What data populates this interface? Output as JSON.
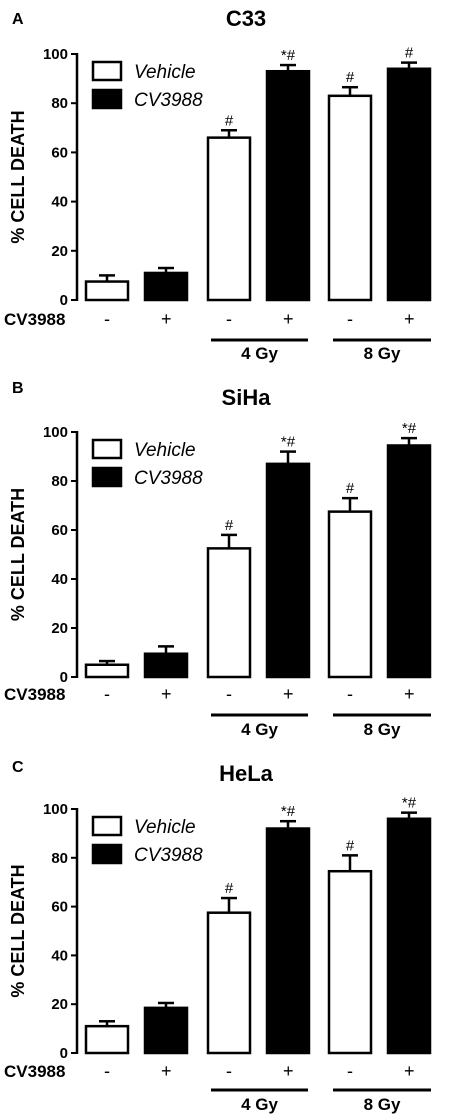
{
  "colors": {
    "vehicle": "#ffffff",
    "cv3988": "#000000",
    "stroke": "#000000"
  },
  "legend": {
    "vehicle": "Vehicle",
    "cv3988": "CV3988"
  },
  "treatment": {
    "label": "CV3988",
    "signs": [
      "-",
      "+",
      "-",
      "+",
      "-",
      "+"
    ]
  },
  "groups": [
    "4 Gy",
    "8 Gy"
  ],
  "chart_data": [
    {
      "type": "bar",
      "panel": "A",
      "title": "C33",
      "ylabel": "% CELL DEATH",
      "ylim": [
        0,
        100
      ],
      "yticks": [
        0,
        20,
        40,
        60,
        80,
        100
      ],
      "categories": [
        "-",
        "+",
        "-",
        "+",
        "-",
        "+"
      ],
      "series_of_bar": [
        "Vehicle",
        "CV3988",
        "Vehicle",
        "CV3988",
        "Vehicle",
        "CV3988"
      ],
      "values": [
        7.5,
        11,
        66,
        93,
        83,
        94
      ],
      "errors": [
        2.5,
        2,
        3,
        2.5,
        3.5,
        2.5
      ],
      "annotations": [
        "",
        "",
        "#",
        "*#",
        "#",
        "#"
      ],
      "group_labels": [
        "4 Gy",
        "8 Gy"
      ]
    },
    {
      "type": "bar",
      "panel": "B",
      "title": "SiHa",
      "ylabel": "% CELL DEATH",
      "ylim": [
        0,
        100
      ],
      "yticks": [
        0,
        20,
        40,
        60,
        80,
        100
      ],
      "categories": [
        "-",
        "+",
        "-",
        "+",
        "-",
        "+"
      ],
      "series_of_bar": [
        "Vehicle",
        "CV3988",
        "Vehicle",
        "CV3988",
        "Vehicle",
        "CV3988"
      ],
      "values": [
        5,
        9.5,
        52.5,
        87,
        67.5,
        94.5
      ],
      "errors": [
        1.5,
        3,
        5.5,
        5,
        5.5,
        3
      ],
      "annotations": [
        "",
        "",
        "#",
        "*#",
        "#",
        "*#"
      ],
      "group_labels": [
        "4 Gy",
        "8 Gy"
      ]
    },
    {
      "type": "bar",
      "panel": "C",
      "title": "HeLa",
      "ylabel": "% CELL DEATH",
      "ylim": [
        0,
        100
      ],
      "yticks": [
        0,
        20,
        40,
        60,
        80,
        100
      ],
      "categories": [
        "-",
        "+",
        "-",
        "+",
        "-",
        "+"
      ],
      "series_of_bar": [
        "Vehicle",
        "CV3988",
        "Vehicle",
        "CV3988",
        "Vehicle",
        "CV3988"
      ],
      "values": [
        11,
        18.5,
        57.5,
        92,
        74.5,
        96
      ],
      "errors": [
        2,
        2,
        6,
        3,
        6.5,
        2.5
      ],
      "annotations": [
        "",
        "",
        "#",
        "*#",
        "#",
        "*#"
      ],
      "group_labels": [
        "4 Gy",
        "8 Gy"
      ]
    }
  ]
}
